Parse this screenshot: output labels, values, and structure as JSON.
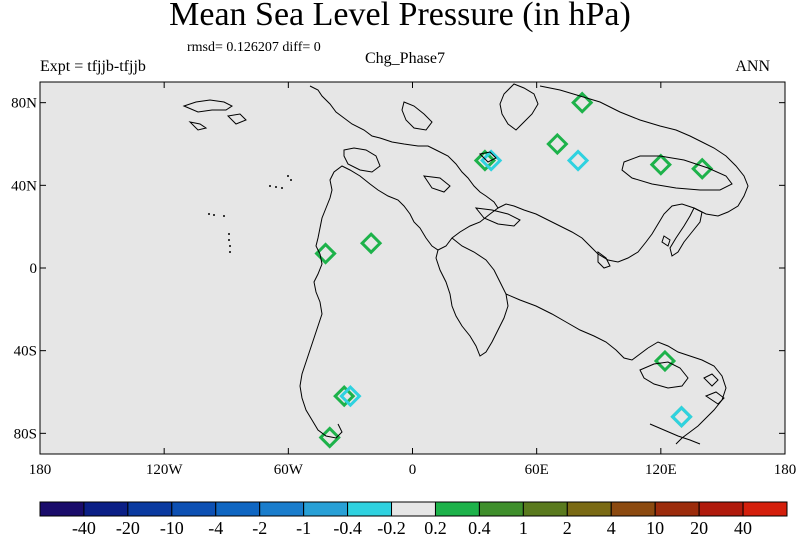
{
  "title": "Mean Sea Level Pressure (in hPa)",
  "stats_text": "rmsd= 0.126207 diff= 0",
  "left_label": "Expt = tfjjb-tfjjb",
  "center_label": "Chg_Phase7",
  "right_label": "ANN",
  "colors": {
    "map_background": "#e6e6e6",
    "coastline": "#000000"
  },
  "chart_data": {
    "type": "heatmap",
    "title": "Mean Sea Level Pressure (in hPa)",
    "field": "MSLP difference tfjjb minus tfjjb, annual mean",
    "xlim": [
      -180,
      180
    ],
    "ylim": [
      -90,
      90
    ],
    "x_ticks": [
      {
        "value": -180,
        "label": "180"
      },
      {
        "value": -120,
        "label": "120W"
      },
      {
        "value": -60,
        "label": "60W"
      },
      {
        "value": 0,
        "label": "0"
      },
      {
        "value": 60,
        "label": "60E"
      },
      {
        "value": 120,
        "label": "120E"
      },
      {
        "value": 180,
        "label": "180"
      }
    ],
    "y_ticks": [
      {
        "value": 80,
        "label": "80N"
      },
      {
        "value": 40,
        "label": "40N"
      },
      {
        "value": 0,
        "label": "0"
      },
      {
        "value": -40,
        "label": "40S"
      },
      {
        "value": -80,
        "label": "80S"
      }
    ],
    "colorbar": {
      "levels": [
        "-40",
        "-20",
        "-10",
        "-4",
        "-2",
        "-1",
        "-0.4",
        "-0.2",
        "0.2",
        "0.4",
        "1",
        "2",
        "4",
        "10",
        "20",
        "40"
      ],
      "colors": [
        "#1a0c6b",
        "#0b1f86",
        "#0a3aa0",
        "#0d50b3",
        "#0f66c2",
        "#1a7dcc",
        "#28a0d6",
        "#2fd2e0",
        "#e6e6e6",
        "#1db24a",
        "#3f8f2c",
        "#5a7a1e",
        "#7a6a14",
        "#8c4a10",
        "#9c2c0c",
        "#b01a0c",
        "#d41f0c"
      ]
    },
    "anomaly_patches": [
      {
        "lon": 82,
        "lat": 80,
        "class": "0.2 to 0.4"
      },
      {
        "lon": 70,
        "lat": 60,
        "class": "0.2 to 0.4"
      },
      {
        "lon": 35,
        "lat": 52,
        "class": "0.2 to 0.4"
      },
      {
        "lon": 120,
        "lat": 50,
        "class": "0.2 to 0.4"
      },
      {
        "lon": 140,
        "lat": 48,
        "class": "0.2 to 0.4"
      },
      {
        "lon": -42,
        "lat": 7,
        "class": "0.2 to 0.4"
      },
      {
        "lon": -20,
        "lat": 12,
        "class": "0.2 to 0.4"
      },
      {
        "lon": -33,
        "lat": -62,
        "class": "0.2 to 0.4"
      },
      {
        "lon": -40,
        "lat": -82,
        "class": "0.2 to 0.4"
      },
      {
        "lon": 122,
        "lat": -45,
        "class": "0.2 to 0.4"
      },
      {
        "lon": 130,
        "lat": -72,
        "class": "0.2 to 0.4"
      },
      {
        "lon": 80,
        "lat": 52,
        "class": "-0.4 to -0.2"
      },
      {
        "lon": 38,
        "lat": 52,
        "class": "-0.4 to -0.2"
      },
      {
        "lon": -30,
        "lat": -62,
        "class": "-0.4 to -0.2"
      },
      {
        "lon": 130,
        "lat": -72,
        "class": "-0.4 to -0.2"
      }
    ]
  }
}
